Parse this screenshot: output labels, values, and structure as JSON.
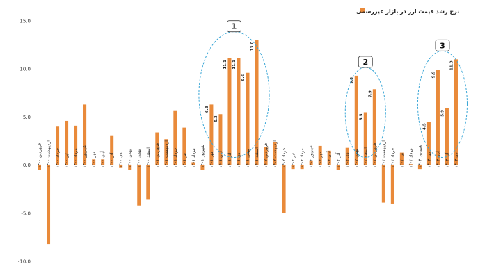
{
  "chart_data": {
    "type": "bar",
    "series": [
      {
        "name": "نرخ رشد قیمت ارز در بازار غیررسمی",
        "color": "#E98A3A",
        "values": [
          -0.5,
          -8.2,
          4.0,
          4.6,
          4.1,
          6.3,
          0.6,
          0.6,
          3.1,
          -0.3,
          -0.5,
          -4.2,
          -3.6,
          3.4,
          2.7,
          5.7,
          3.9,
          0.3,
          -0.5,
          6.3,
          5.3,
          11.1,
          11.1,
          9.6,
          13.0,
          1.9,
          2.4,
          -5.0,
          -0.4,
          -0.4,
          0.5,
          2.0,
          1.5,
          -0.5,
          1.8,
          9.3,
          5.5,
          7.9,
          -3.9,
          -4.0,
          1.3,
          0.1,
          -0.4,
          4.5,
          9.9,
          5.9,
          11.0
        ]
      }
    ],
    "categories": [
      "فروردین ۱۴۰۰",
      "اردیبهشت ۱۴۰۰",
      "خرداد ۱۴۰۰",
      "تیر ۱۴۰۰",
      "مرداد ۱۴۰۰",
      "شهریور ۱۴۰۰",
      "مهر ۱۴۰۰",
      "آبان ۱۴۰۰",
      "آذر ۱۴۰۰",
      "دی ۱۴۰۰",
      "بهمن ۱۴۰۰",
      "بهمن ۱۴۰۰",
      "اسفند ۱۴۰۰",
      "فروردین ۱۴۰۱",
      "اردیبهشت ۱۴۰۱",
      "خرداد ۱۴۰۱",
      "تیر ۱۴۰۱",
      "مرداد ۱۴۰۱",
      "شهریور ۱۴۰۱",
      "مهر ۱۴۰۱",
      "آبان ۱۴۰۱",
      "آذر ۱۴۰۱",
      "دی ۱۴۰۱",
      "بهمن ۱۴۰۱",
      "اسفند ۱۴۰۱",
      "فروردین ۱۴۰۲",
      "اردیبهشت ۱۴۰۲",
      "خرداد ۱۴۰۲",
      "تیر ۱۴۰۲",
      "مرداد ۱۴۰۲",
      "شهریور ۱۴۰۲",
      "مهر ۱۴۰۲",
      "آبان ۱۴۰۲",
      "آذر ۱۴۰۲",
      "دی ۱۴۰۲",
      "بهمن ۱۴۰۲",
      "اسفند ۱۴۰۲",
      "فروردین ۱۴۰۳",
      "اردیبهشت ۱۴۰۳",
      "خرداد ۱۴۰۳",
      "تیر ۱۴۰۳",
      "مرداد ۱۴۰۳",
      "شهریور ۱۴۰۳",
      "مهر ۱۴۰۳",
      "آبان ۱۴۰۳",
      "آذر ۱۴۰۳",
      "دی ۱۴۰۳"
    ],
    "data_labels": [
      {
        "index": 19,
        "text": "6.3"
      },
      {
        "index": 20,
        "text": "5.3"
      },
      {
        "index": 21,
        "text": "11.1"
      },
      {
        "index": 22,
        "text": "11.1"
      },
      {
        "index": 23,
        "text": "9.6"
      },
      {
        "index": 24,
        "text": "13.0"
      },
      {
        "index": 35,
        "text": "9.3"
      },
      {
        "index": 36,
        "text": "5.5"
      },
      {
        "index": 37,
        "text": "7.9"
      },
      {
        "index": 43,
        "text": "4.5"
      },
      {
        "index": 44,
        "text": "9.9"
      },
      {
        "index": 45,
        "text": "5.9"
      },
      {
        "index": 46,
        "text": "11.0"
      }
    ],
    "ylim": [
      -10,
      15
    ],
    "yticks": [
      "15.0",
      "10.0",
      "5.0",
      "0.0",
      "-5.0",
      "-10.0"
    ],
    "grid": false,
    "legend_position": "top-right",
    "annotations": [
      {
        "label": "1",
        "from_index": 19,
        "to_index": 24
      },
      {
        "label": "2",
        "from_index": 35,
        "to_index": 37
      },
      {
        "label": "3",
        "from_index": 43,
        "to_index": 46
      }
    ]
  }
}
